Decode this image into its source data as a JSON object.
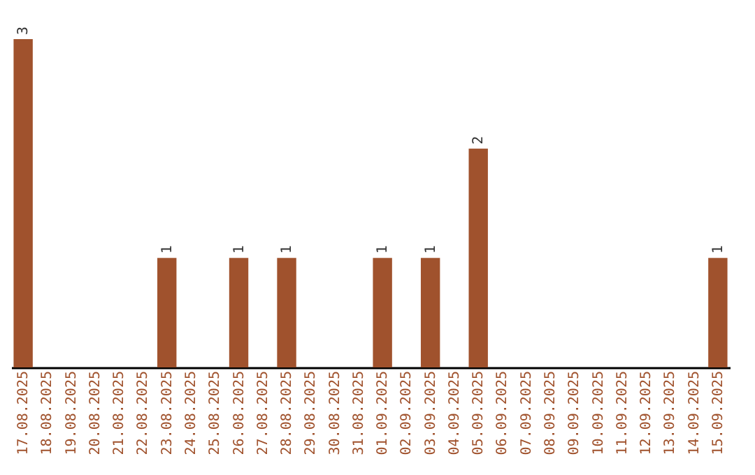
{
  "chart_data": {
    "type": "bar",
    "categories": [
      "17.08.2025",
      "18.08.2025",
      "19.08.2025",
      "20.08.2025",
      "21.08.2025",
      "22.08.2025",
      "23.08.2025",
      "24.08.2025",
      "25.08.2025",
      "26.08.2025",
      "27.08.2025",
      "28.08.2025",
      "29.08.2025",
      "30.08.2025",
      "31.08.2025",
      "01.09.2025",
      "02.09.2025",
      "03.09.2025",
      "04.09.2025",
      "05.09.2025",
      "06.09.2025",
      "07.09.2025",
      "08.09.2025",
      "09.09.2025",
      "10.09.2025",
      "11.09.2025",
      "12.09.2025",
      "13.09.2025",
      "14.09.2025",
      "15.09.2025"
    ],
    "values": [
      3,
      0,
      0,
      0,
      0,
      0,
      1,
      0,
      0,
      1,
      0,
      1,
      0,
      0,
      0,
      1,
      0,
      1,
      0,
      2,
      0,
      0,
      0,
      0,
      0,
      0,
      0,
      0,
      0,
      1
    ],
    "value_labels": [
      "3",
      null,
      null,
      null,
      null,
      null,
      "1",
      null,
      null,
      "1",
      null,
      "1",
      null,
      null,
      null,
      "1",
      null,
      "1",
      null,
      "2",
      null,
      null,
      null,
      null,
      null,
      null,
      null,
      null,
      null,
      "1"
    ],
    "color": "#a0522d",
    "ylim": [
      0,
      3
    ],
    "tick_labels": "x",
    "grid": false
  }
}
